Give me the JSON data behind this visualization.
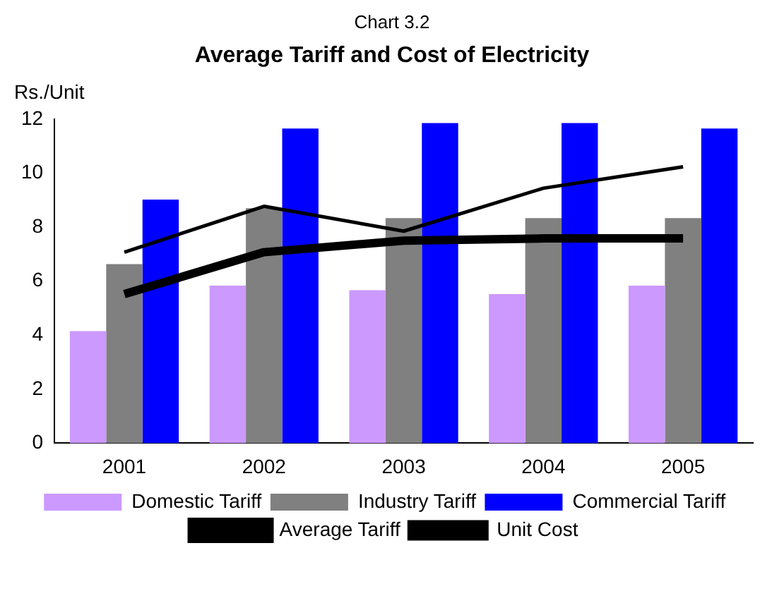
{
  "chart_data": {
    "type": "bar",
    "subtitle": "Chart 3.2",
    "title": "Average Tariff and Cost of Electricity",
    "ylabel": "Rs./Unit",
    "categories": [
      "2001",
      "2002",
      "2003",
      "2004",
      "2005"
    ],
    "series": [
      {
        "name": "Domestic Tariff",
        "color": "#cc99ff",
        "values": [
          4.15,
          5.83,
          5.66,
          5.52,
          5.83
        ]
      },
      {
        "name": "Industry Tariff",
        "color": "#808080",
        "values": [
          6.63,
          8.7,
          8.33,
          8.33,
          8.33
        ]
      },
      {
        "name": "Commercial Tariff",
        "color": "#0000ff",
        "values": [
          9.02,
          11.65,
          11.85,
          11.85,
          11.65
        ]
      },
      {
        "name": "Average Tariff",
        "type": "line",
        "color": "#000000",
        "values": [
          5.52,
          7.07,
          7.5,
          7.58,
          7.58
        ]
      },
      {
        "name": "Unit Cost",
        "type": "line",
        "color": "#000000",
        "values": [
          7.07,
          8.77,
          7.85,
          9.44,
          10.23
        ]
      }
    ],
    "ylim": [
      0,
      12
    ],
    "yticks": [
      0,
      2,
      4,
      6,
      8,
      10,
      12
    ],
    "grid": false,
    "legend": "bottom",
    "marker": "none",
    "line_style": "solid"
  }
}
